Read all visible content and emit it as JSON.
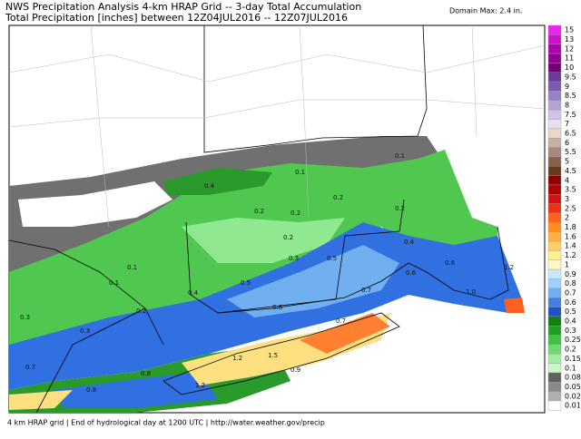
{
  "header": {
    "title": "NWS Precipitation Analysis 4-km HRAP Grid -- 3-day Total Accumulation",
    "subtitle": "Total Precipitation [inches] between 12Z04JUL2016 -- 12Z07JUL2016",
    "domain_max": "Domain Max: 2.4 in."
  },
  "legend": [
    {
      "label": "15",
      "color": "#f020f0"
    },
    {
      "label": "13",
      "color": "#d010d0"
    },
    {
      "label": "12",
      "color": "#b000b0"
    },
    {
      "label": "11",
      "color": "#900090"
    },
    {
      "label": "10",
      "color": "#700070"
    },
    {
      "label": "9.5",
      "color": "#6a3d9a"
    },
    {
      "label": "9",
      "color": "#7e57b0"
    },
    {
      "label": "8.5",
      "color": "#9a80c4"
    },
    {
      "label": "8",
      "color": "#b4a4d6"
    },
    {
      "label": "7.5",
      "color": "#cfc4e6"
    },
    {
      "label": "7",
      "color": "#e6e0f2"
    },
    {
      "label": "6.5",
      "color": "#e8d8cc"
    },
    {
      "label": "6",
      "color": "#c8b0a0"
    },
    {
      "label": "5.5",
      "color": "#a88878"
    },
    {
      "label": "5",
      "color": "#886050"
    },
    {
      "label": "4.5",
      "color": "#683820"
    },
    {
      "label": "4",
      "color": "#8b0000"
    },
    {
      "label": "3.5",
      "color": "#b00000"
    },
    {
      "label": "3",
      "color": "#d81010"
    },
    {
      "label": "2.5",
      "color": "#f03010"
    },
    {
      "label": "2",
      "color": "#ff6020"
    },
    {
      "label": "1.8",
      "color": "#ff8c20"
    },
    {
      "label": "1.6",
      "color": "#ffb040"
    },
    {
      "label": "1.4",
      "color": "#ffd060"
    },
    {
      "label": "1.2",
      "color": "#fff08c"
    },
    {
      "label": "1",
      "color": "#fff8c0"
    },
    {
      "label": "0.9",
      "color": "#c8e8ff"
    },
    {
      "label": "0.8",
      "color": "#a0d0ff"
    },
    {
      "label": "0.7",
      "color": "#70b0f0"
    },
    {
      "label": "0.6",
      "color": "#4080e0"
    },
    {
      "label": "0.5",
      "color": "#2050d0"
    },
    {
      "label": "0.4",
      "color": "#108010"
    },
    {
      "label": "0.3",
      "color": "#20a020"
    },
    {
      "label": "0.25",
      "color": "#40c040"
    },
    {
      "label": "0.2",
      "color": "#70d870"
    },
    {
      "label": "0.15",
      "color": "#a0eea0"
    },
    {
      "label": "0.1",
      "color": "#c8f8c8"
    },
    {
      "label": "0.08",
      "color": "#606060"
    },
    {
      "label": "0.05",
      "color": "#888888"
    },
    {
      "label": "0.02",
      "color": "#b0b0b0"
    },
    {
      "label": "0.01",
      "color": "#ffffff"
    }
  ],
  "map_labels": [
    "0.1",
    "0.4",
    "0.2",
    "0.2",
    "0.2",
    "0.1",
    "0.2",
    "0.2",
    "0.3",
    "0.1",
    "0.1",
    "0.2",
    "0.3",
    "0.3",
    "0.4",
    "0.5",
    "0.6",
    "0.7",
    "0.7",
    "0.5",
    "1.2",
    "1.5",
    "0.9",
    "1.2",
    "0.8",
    "0.7",
    "0.6",
    "1.2",
    "1.0",
    "0.6",
    "0.4",
    "0.8"
  ],
  "footer": "4 km HRAP grid | End of hydrological day at 1200 UTC | http://water.weather.gov/precip"
}
